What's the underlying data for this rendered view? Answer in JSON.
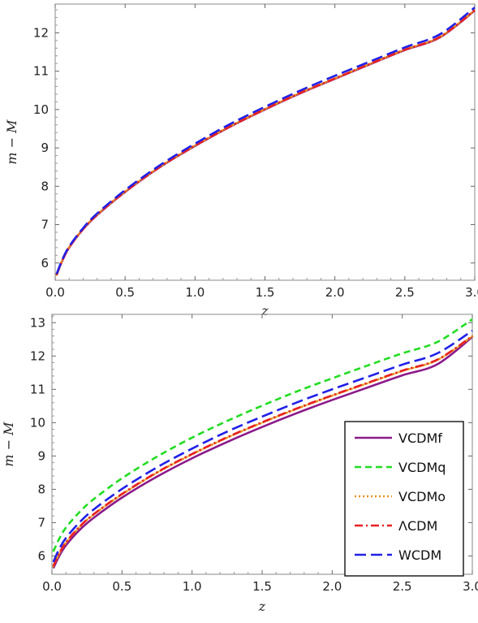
{
  "chart_data": [
    {
      "type": "line",
      "xlabel": "z",
      "ylabel": "m − M",
      "xlim": [
        0,
        3
      ],
      "ylim": [
        5.55,
        12.75
      ],
      "xticks": [
        0.0,
        0.5,
        1.0,
        1.5,
        2.0,
        2.5,
        3.0
      ],
      "xtick_labels": [
        "0.0",
        "0.5",
        "1.0",
        "1.5",
        "2.0",
        "2.5",
        "3.0"
      ],
      "yticks": [
        6,
        7,
        8,
        9,
        10,
        11,
        12
      ],
      "ytick_labels": [
        "6",
        "7",
        "8",
        "9",
        "10",
        "11",
        "12"
      ],
      "grid": false,
      "legend": null,
      "x": [
        0.01,
        0.05,
        0.1,
        0.2,
        0.3,
        0.5,
        0.75,
        1.0,
        1.25,
        1.5,
        1.75,
        2.0,
        2.25,
        2.5,
        2.75,
        3.0
      ],
      "series": [
        {
          "color": "#8b1a8b",
          "dash": "solid",
          "values": [
            5.68,
            6.05,
            6.4,
            6.88,
            7.25,
            7.85,
            8.5,
            9.05,
            9.55,
            10.0,
            10.42,
            10.8,
            11.18,
            11.55,
            11.88,
            12.58
          ]
        },
        {
          "color": "#e8901a",
          "dash": "dot",
          "values": [
            5.69,
            6.06,
            6.41,
            6.89,
            7.26,
            7.86,
            8.51,
            9.06,
            9.56,
            10.01,
            10.43,
            10.81,
            11.19,
            11.56,
            11.89,
            12.59
          ]
        },
        {
          "color": "#e82020",
          "dash": "dashdot",
          "values": [
            5.69,
            6.06,
            6.41,
            6.89,
            7.26,
            7.86,
            8.51,
            9.06,
            9.56,
            10.01,
            10.43,
            10.81,
            11.19,
            11.56,
            11.89,
            12.59
          ]
        },
        {
          "color": "#2020e8",
          "dash": "longdash",
          "values": [
            5.71,
            6.08,
            6.43,
            6.91,
            7.29,
            7.9,
            8.55,
            9.11,
            9.62,
            10.07,
            10.49,
            10.88,
            11.25,
            11.62,
            11.96,
            12.66
          ]
        }
      ]
    },
    {
      "type": "line",
      "xlabel": "z",
      "ylabel": "m − M",
      "xlim": [
        0,
        3
      ],
      "ylim": [
        5.45,
        13.25
      ],
      "xticks": [
        0.0,
        0.5,
        1.0,
        1.5,
        2.0,
        2.5,
        3.0
      ],
      "xtick_labels": [
        "0.0",
        "0.5",
        "1.0",
        "1.5",
        "2.0",
        "2.5",
        "3.0"
      ],
      "yticks": [
        6,
        7,
        8,
        9,
        10,
        11,
        12,
        13
      ],
      "ytick_labels": [
        "6",
        "7",
        "8",
        "9",
        "10",
        "11",
        "12",
        "13"
      ],
      "grid": false,
      "legend": "bottom-right",
      "x": [
        0.01,
        0.05,
        0.1,
        0.2,
        0.3,
        0.5,
        0.75,
        1.0,
        1.25,
        1.5,
        1.75,
        2.0,
        2.25,
        2.5,
        2.75,
        3.0
      ],
      "series": [
        {
          "name": "VCDMf",
          "color": "#8b1a8b",
          "dash": "solid",
          "values": [
            5.63,
            5.98,
            6.32,
            6.79,
            7.15,
            7.75,
            8.38,
            8.93,
            9.42,
            9.87,
            10.29,
            10.68,
            11.05,
            11.42,
            11.75,
            12.57
          ]
        },
        {
          "name": "VCDMq",
          "color": "#22dd22",
          "dash": "dash",
          "values": [
            6.13,
            6.5,
            6.85,
            7.33,
            7.71,
            8.33,
            8.98,
            9.55,
            10.05,
            10.51,
            10.94,
            11.33,
            11.71,
            12.08,
            12.42,
            13.1
          ]
        },
        {
          "name": "VCDMo",
          "color": "#e8901a",
          "dash": "dot",
          "values": [
            5.69,
            6.05,
            6.4,
            6.88,
            7.25,
            7.85,
            8.5,
            9.05,
            9.55,
            10.0,
            10.42,
            10.81,
            11.18,
            11.55,
            11.88,
            12.59
          ]
        },
        {
          "name": "ΛCDM",
          "color": "#e82020",
          "dash": "dashdot",
          "values": [
            5.7,
            6.06,
            6.41,
            6.89,
            7.26,
            7.86,
            8.51,
            9.06,
            9.56,
            10.01,
            10.43,
            10.82,
            11.19,
            11.56,
            11.89,
            12.6
          ]
        },
        {
          "name": "WCDM",
          "color": "#2020e8",
          "dash": "longdash",
          "values": [
            5.82,
            6.19,
            6.54,
            7.02,
            7.4,
            8.01,
            8.66,
            9.22,
            9.73,
            10.18,
            10.61,
            11.0,
            11.37,
            11.74,
            12.08,
            12.76
          ]
        }
      ]
    }
  ]
}
